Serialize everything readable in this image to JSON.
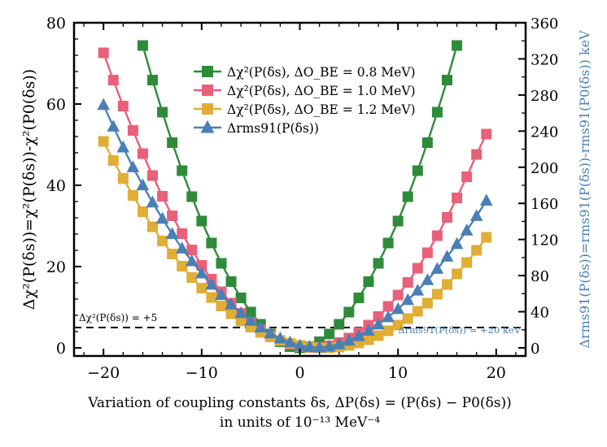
{
  "chart_data": {
    "type": "line",
    "xlabel": "Variation of coupling constants δs, ΔP(δs) = (P(δs) − P0(δs))",
    "xlabel2": "in units of 10⁻¹³ MeV⁻⁴",
    "ylabel": "Δχ²(P(δs))=χ²(P(δs))-χ²(P0(δs))",
    "ylabel2": "Δrms91(P(δs))=rms91(P(δs))-rms91(P0(δs)) keV",
    "xlim": [
      -23,
      23
    ],
    "ylim": [
      -2,
      80
    ],
    "y2lim": [
      -9,
      360
    ],
    "xticks": [
      -20,
      -10,
      0,
      10,
      20
    ],
    "yticks": [
      0,
      20,
      40,
      60,
      80
    ],
    "y2ticks": [
      0,
      40,
      80,
      120,
      160,
      200,
      240,
      280,
      320,
      360
    ],
    "x": [
      -20,
      -19,
      -18,
      -17,
      -16,
      -15,
      -14,
      -13,
      -12,
      -11,
      -10,
      -9,
      -8,
      -7,
      -6,
      -5,
      -4,
      -3,
      -2,
      -1,
      0,
      1,
      2,
      3,
      4,
      5,
      6,
      7,
      8,
      9,
      10,
      11,
      12,
      13,
      14,
      15,
      16,
      17,
      18,
      19
    ],
    "grid": false,
    "legend_position": "top-center",
    "reference_lines": [
      {
        "axis": "left",
        "y": 5,
        "label": "Δχ²(P(δs)) = +5",
        "color": "#000000"
      },
      {
        "axis": "right",
        "y": 20,
        "label": "Δrms91(P(δs)) = +20 keV",
        "color": "#4a7fb5"
      }
    ],
    "series": [
      {
        "name": "Δχ²(P(δs), ΔO_BE = 0.8 MeV)",
        "marker": "square",
        "color": "#2e8b3a",
        "axis": "left",
        "values": [
          null,
          null,
          null,
          null,
          74.4,
          65.9,
          58.0,
          50.5,
          43.6,
          37.2,
          31.2,
          25.8,
          20.8,
          16.3,
          12.3,
          8.8,
          5.8,
          3.4,
          1.5,
          0.3,
          0.0,
          0.3,
          1.5,
          3.4,
          5.8,
          8.8,
          12.3,
          16.3,
          20.8,
          25.8,
          31.2,
          37.2,
          43.6,
          50.5,
          58.0,
          65.9,
          74.4,
          null,
          null,
          null
        ]
      },
      {
        "name": "Δχ²(P(δs), ΔO_BE = 1.0 MeV)",
        "marker": "square",
        "color": "#e9607a",
        "axis": "left",
        "values": [
          72.6,
          65.9,
          59.5,
          53.5,
          47.8,
          42.4,
          37.3,
          32.5,
          28.1,
          24.1,
          20.3,
          16.9,
          13.8,
          11.0,
          8.5,
          6.3,
          4.5,
          3.0,
          1.8,
          0.9,
          0.3,
          0.1,
          0.1,
          0.5,
          1.3,
          2.4,
          3.8,
          5.6,
          7.7,
          10.2,
          13.0,
          16.1,
          19.6,
          23.4,
          27.6,
          32.1,
          36.9,
          42.1,
          47.6,
          52.6
        ]
      },
      {
        "name": "Δχ²(P(δs), ΔO_BE = 1.2 MeV)",
        "marker": "square",
        "color": "#e0ad35",
        "axis": "left",
        "values": [
          50.8,
          46.1,
          41.7,
          37.5,
          33.5,
          29.8,
          26.3,
          23.1,
          20.1,
          17.3,
          14.7,
          12.4,
          10.3,
          8.4,
          6.6,
          5.1,
          3.8,
          2.7,
          1.8,
          1.1,
          0.6,
          0.2,
          0.0,
          0.0,
          0.2,
          0.6,
          1.2,
          2.0,
          3.0,
          4.2,
          5.6,
          7.2,
          9.0,
          11.0,
          13.2,
          15.6,
          18.2,
          21.0,
          24.0,
          27.2
        ]
      },
      {
        "name": "Δrms91(P(δs))",
        "marker": "triangle",
        "color": "#4a7fb5",
        "axis": "right",
        "values": [
          269.0,
          245.0,
          222.0,
          200.0,
          180.0,
          161.0,
          143.0,
          126.0,
          110.0,
          96.0,
          82.5,
          70.0,
          58.5,
          48.0,
          38.5,
          30.0,
          22.5,
          16.0,
          10.5,
          6.0,
          2.5,
          1.0,
          0.5,
          1.5,
          4.0,
          8.0,
          13.0,
          19.0,
          26.0,
          34.0,
          43.0,
          53.0,
          63.5,
          75.0,
          87.5,
          101.0,
          115.0,
          130.0,
          146.0,
          163.0
        ]
      }
    ]
  }
}
